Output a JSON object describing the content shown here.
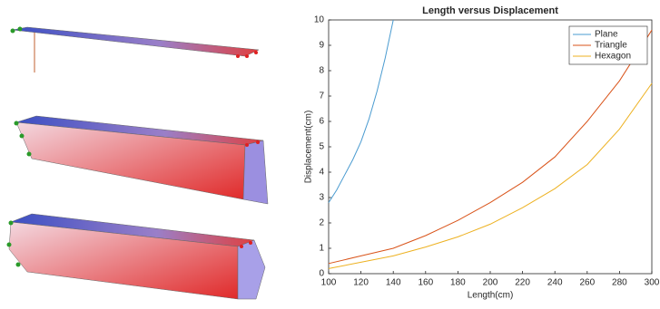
{
  "chart_data": {
    "type": "line",
    "title": "Length versus Displacement",
    "x_label": "Length(cm)",
    "y_label": "Displacement(cm)",
    "xlim": [
      100,
      300
    ],
    "xticks": [
      100,
      120,
      140,
      160,
      180,
      200,
      220,
      240,
      260,
      280,
      300
    ],
    "ylim": [
      0,
      10
    ],
    "yticks": [
      0,
      1,
      2,
      3,
      4,
      5,
      6,
      7,
      8,
      9,
      10
    ],
    "legend": "upper right",
    "series": [
      {
        "name": "Plane",
        "color": "#4a9bd0",
        "x": [
          100,
          105,
          110,
          115,
          120,
          125,
          130,
          135,
          140
        ],
        "values": [
          2.8,
          3.3,
          3.9,
          4.5,
          5.2,
          6.1,
          7.2,
          8.5,
          10.0
        ]
      },
      {
        "name": "Triangle",
        "color": "#d95319",
        "x": [
          100,
          120,
          140,
          160,
          180,
          200,
          220,
          240,
          260,
          280,
          300
        ],
        "values": [
          0.4,
          0.7,
          1.0,
          1.5,
          2.1,
          2.8,
          3.6,
          4.6,
          6.0,
          7.6,
          9.6
        ]
      },
      {
        "name": "Hexagon",
        "color": "#edb120",
        "x": [
          100,
          120,
          140,
          160,
          180,
          200,
          220,
          240,
          260,
          280,
          300
        ],
        "values": [
          0.2,
          0.45,
          0.7,
          1.05,
          1.45,
          1.95,
          2.6,
          3.35,
          4.3,
          5.7,
          7.5
        ]
      }
    ]
  }
}
